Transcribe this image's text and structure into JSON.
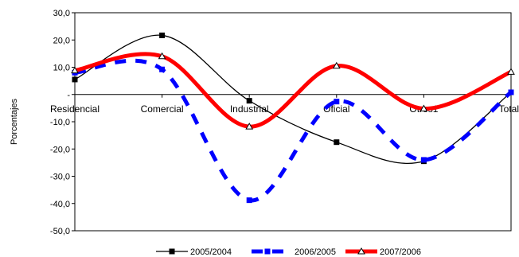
{
  "chart_data": {
    "type": "line",
    "title": "",
    "xlabel": "",
    "ylabel": "Porcentajes",
    "ylim": [
      -50,
      30
    ],
    "yticks": [
      30,
      20,
      10,
      0,
      -10,
      -20,
      -30,
      -40,
      -50
    ],
    "ytick_labels": [
      "30,0",
      "20,0",
      "10,0",
      "-",
      "-10,0",
      "-20,0",
      "-30,0",
      "-40,0",
      "-50,0"
    ],
    "categories": [
      "Residencial",
      "Comercial",
      "Industrial",
      "Oficial",
      "Otros1",
      "Total"
    ],
    "series": [
      {
        "name": "2005/2004",
        "color": "#000000",
        "marker": "square",
        "style": "solid",
        "values": [
          5.5,
          21.7,
          -2.3,
          -17.5,
          -24.5,
          0.8
        ]
      },
      {
        "name": "2006/2005",
        "color": "#0000ff",
        "marker": "square",
        "style": "dashed",
        "values": [
          8.0,
          9.2,
          -38.8,
          -2.6,
          -24.0,
          0.8
        ]
      },
      {
        "name": "2007/2006",
        "color": "#ff0000",
        "marker": "triangle",
        "style": "solid",
        "values": [
          8.8,
          14.0,
          -11.8,
          10.5,
          -5.2,
          8.3
        ]
      }
    ],
    "grid": false,
    "legend_position": "bottom"
  }
}
